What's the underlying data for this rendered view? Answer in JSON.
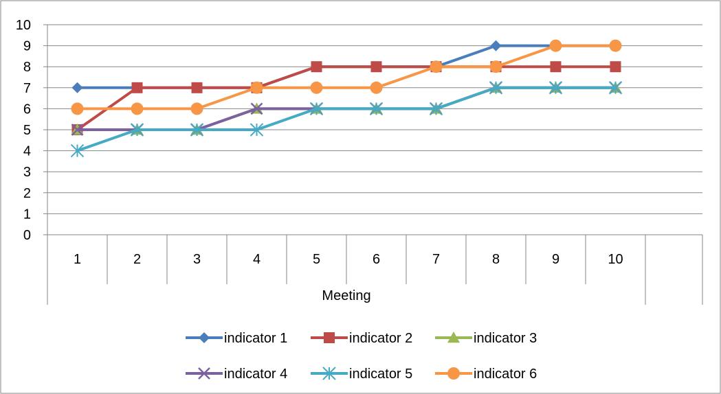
{
  "chart_data": {
    "type": "line",
    "title": "",
    "categories": [
      "1",
      "2",
      "3",
      "4",
      "5",
      "6",
      "7",
      "8",
      "9",
      "10"
    ],
    "xlabel": "Meeting",
    "ylabel": "",
    "ylim": [
      0,
      10
    ],
    "yticks": [
      "0",
      "1",
      "2",
      "3",
      "4",
      "5",
      "6",
      "7",
      "8",
      "9",
      "10"
    ],
    "grid": true,
    "legend_position": "bottom",
    "series": [
      {
        "name": "indicator 1",
        "color": "#4A7EBB",
        "marker": "diamond",
        "values": [
          7,
          7,
          7,
          7,
          8,
          8,
          8,
          9,
          9,
          9
        ]
      },
      {
        "name": "indicator 2",
        "color": "#BE4B48",
        "marker": "square",
        "values": [
          5,
          7,
          7,
          7,
          8,
          8,
          8,
          8,
          8,
          8
        ]
      },
      {
        "name": "indicator 3",
        "color": "#98B954",
        "marker": "triangle",
        "values": [
          5,
          5,
          5,
          6,
          6,
          6,
          6,
          7,
          7,
          7
        ]
      },
      {
        "name": "indicator 4",
        "color": "#7D60A0",
        "marker": "x",
        "values": [
          5,
          5,
          5,
          6,
          6,
          6,
          6,
          7,
          7,
          7
        ]
      },
      {
        "name": "indicator 5",
        "color": "#46AAC5",
        "marker": "star",
        "values": [
          4,
          5,
          5,
          5,
          6,
          6,
          6,
          7,
          7,
          7
        ]
      },
      {
        "name": "indicator 6",
        "color": "#F79646",
        "marker": "circle",
        "values": [
          6,
          6,
          6,
          7,
          7,
          7,
          8,
          8,
          9,
          9
        ]
      }
    ]
  }
}
